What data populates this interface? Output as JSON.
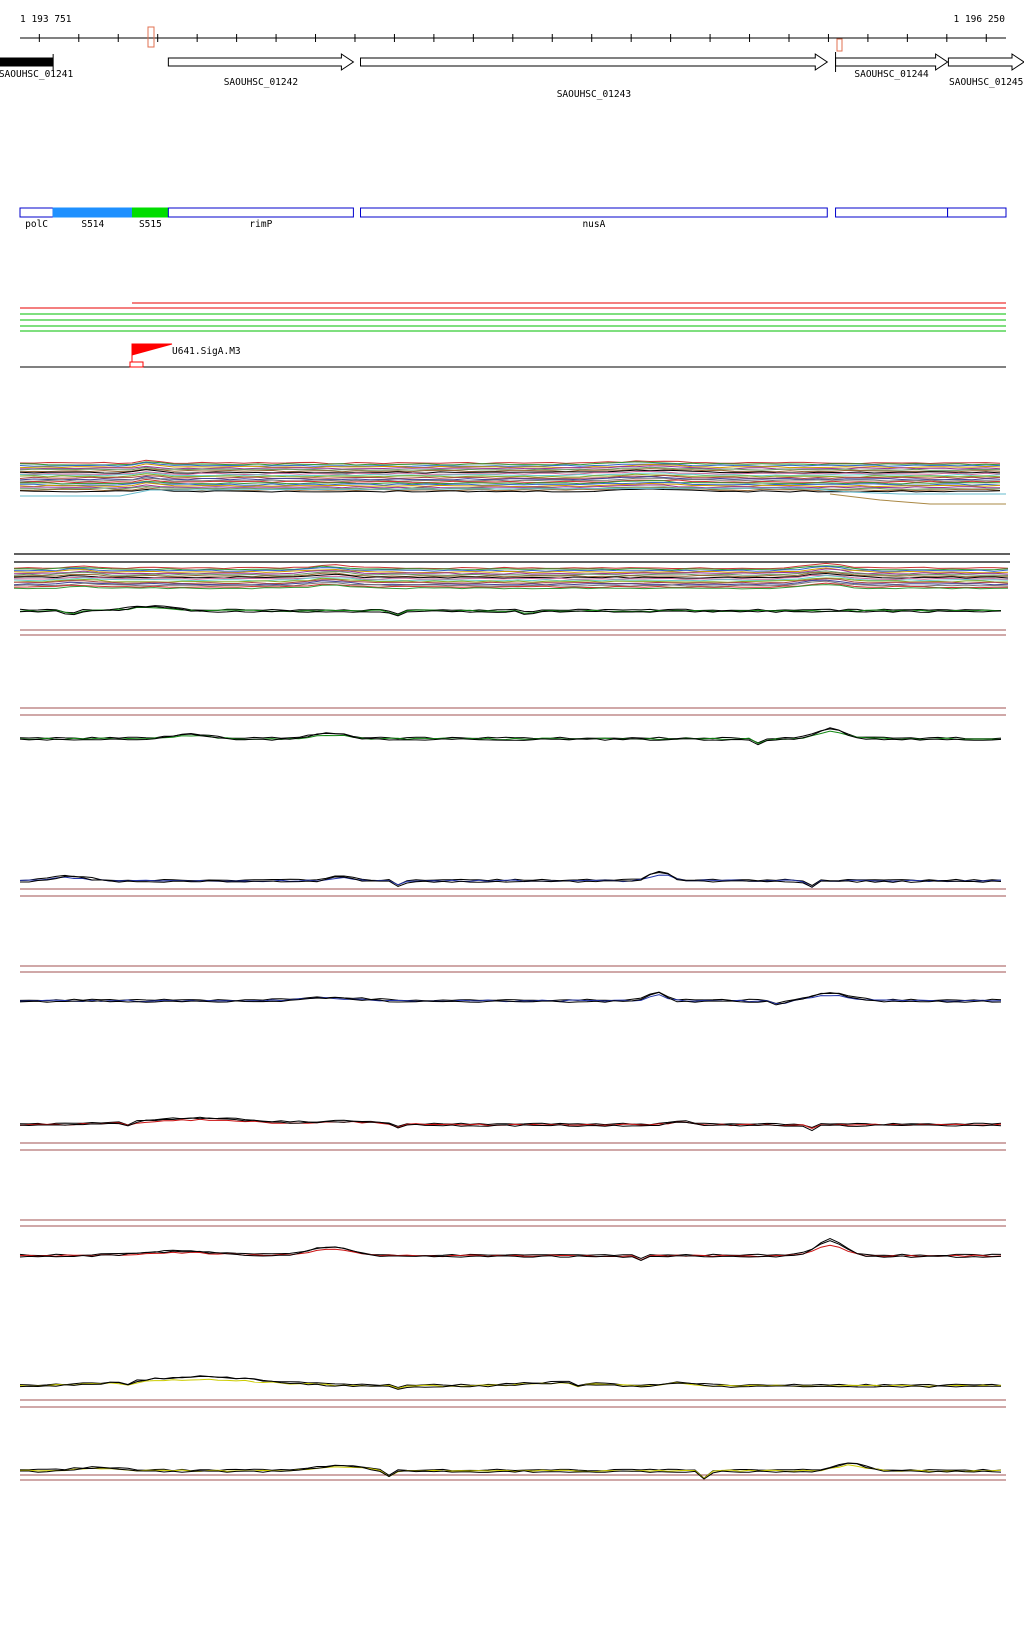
{
  "ruler": {
    "start_label": "1 193 751",
    "end_label": "1 196 250",
    "start": 1193751,
    "end": 1196250
  },
  "genes": [
    {
      "id": "gene-01241",
      "label": "SAOUHSC_01241",
      "start": 1193700,
      "end": 1193835,
      "strand": "+",
      "filled": true
    },
    {
      "id": "gene-01242",
      "label": "SAOUHSC_01242",
      "start": 1194127,
      "end": 1194596,
      "strand": "+",
      "filled": false
    },
    {
      "id": "gene-01243",
      "label": "SAOUHSC_01243",
      "start": 1194614,
      "end": 1195797,
      "strand": "+",
      "filled": false
    },
    {
      "id": "gene-01244",
      "label": "SAOUHSC_01244",
      "start": 1195818,
      "end": 1196102,
      "strand": "+",
      "filled": false
    },
    {
      "id": "gene-01245",
      "label": "SAOUHSC_01245",
      "start": 1196104,
      "end": 1196300,
      "strand": "+",
      "filled": false
    }
  ],
  "regions": [
    {
      "id": "region-polc",
      "label": "polC",
      "start": 1193751,
      "end": 1193835,
      "color": "#ffffff"
    },
    {
      "id": "region-s514",
      "label": "S514",
      "start": 1193835,
      "end": 1194036,
      "color": "#1e90ff"
    },
    {
      "id": "region-s515",
      "label": "S515",
      "start": 1194036,
      "end": 1194127,
      "color": "#00dd00"
    },
    {
      "id": "region-rimp",
      "label": "rimP",
      "start": 1194127,
      "end": 1194596,
      "color": "#ffffff"
    },
    {
      "id": "region-nusa",
      "label": "nusA",
      "start": 1194614,
      "end": 1195797,
      "color": "#ffffff"
    },
    {
      "id": "region-01244",
      "label": "",
      "start": 1195818,
      "end": 1196102,
      "color": "#ffffff"
    },
    {
      "id": "region-01245",
      "label": "",
      "start": 1196102,
      "end": 1196250,
      "color": "#ffffff"
    }
  ],
  "promoter": {
    "label": "U641.SigA.M3",
    "position": 1194036
  },
  "colors": {
    "gene_outline": "#000000",
    "region_outline": "#0000cc",
    "ruler_marker": "#e07050",
    "reference_line": "#a05050",
    "transcript_red": "#ee3333",
    "transcript_green": "#33cc33",
    "promoter_flag": "#ff0000",
    "green": "#118811",
    "blue": "#2233aa",
    "red": "#cc1111",
    "yellow": "#cccc00"
  },
  "condition_panels": [
    {
      "id": "panel-green-1",
      "color": "#118811"
    },
    {
      "id": "panel-green-2",
      "color": "#118811"
    },
    {
      "id": "panel-blue-1",
      "color": "#2233aa"
    },
    {
      "id": "panel-blue-2",
      "color": "#2233aa"
    },
    {
      "id": "panel-red-1",
      "color": "#cc1111"
    },
    {
      "id": "panel-red-2",
      "color": "#cc1111"
    },
    {
      "id": "panel-yellow-1",
      "color": "#cccc00"
    },
    {
      "id": "panel-yellow-2",
      "color": "#cccc00"
    }
  ]
}
